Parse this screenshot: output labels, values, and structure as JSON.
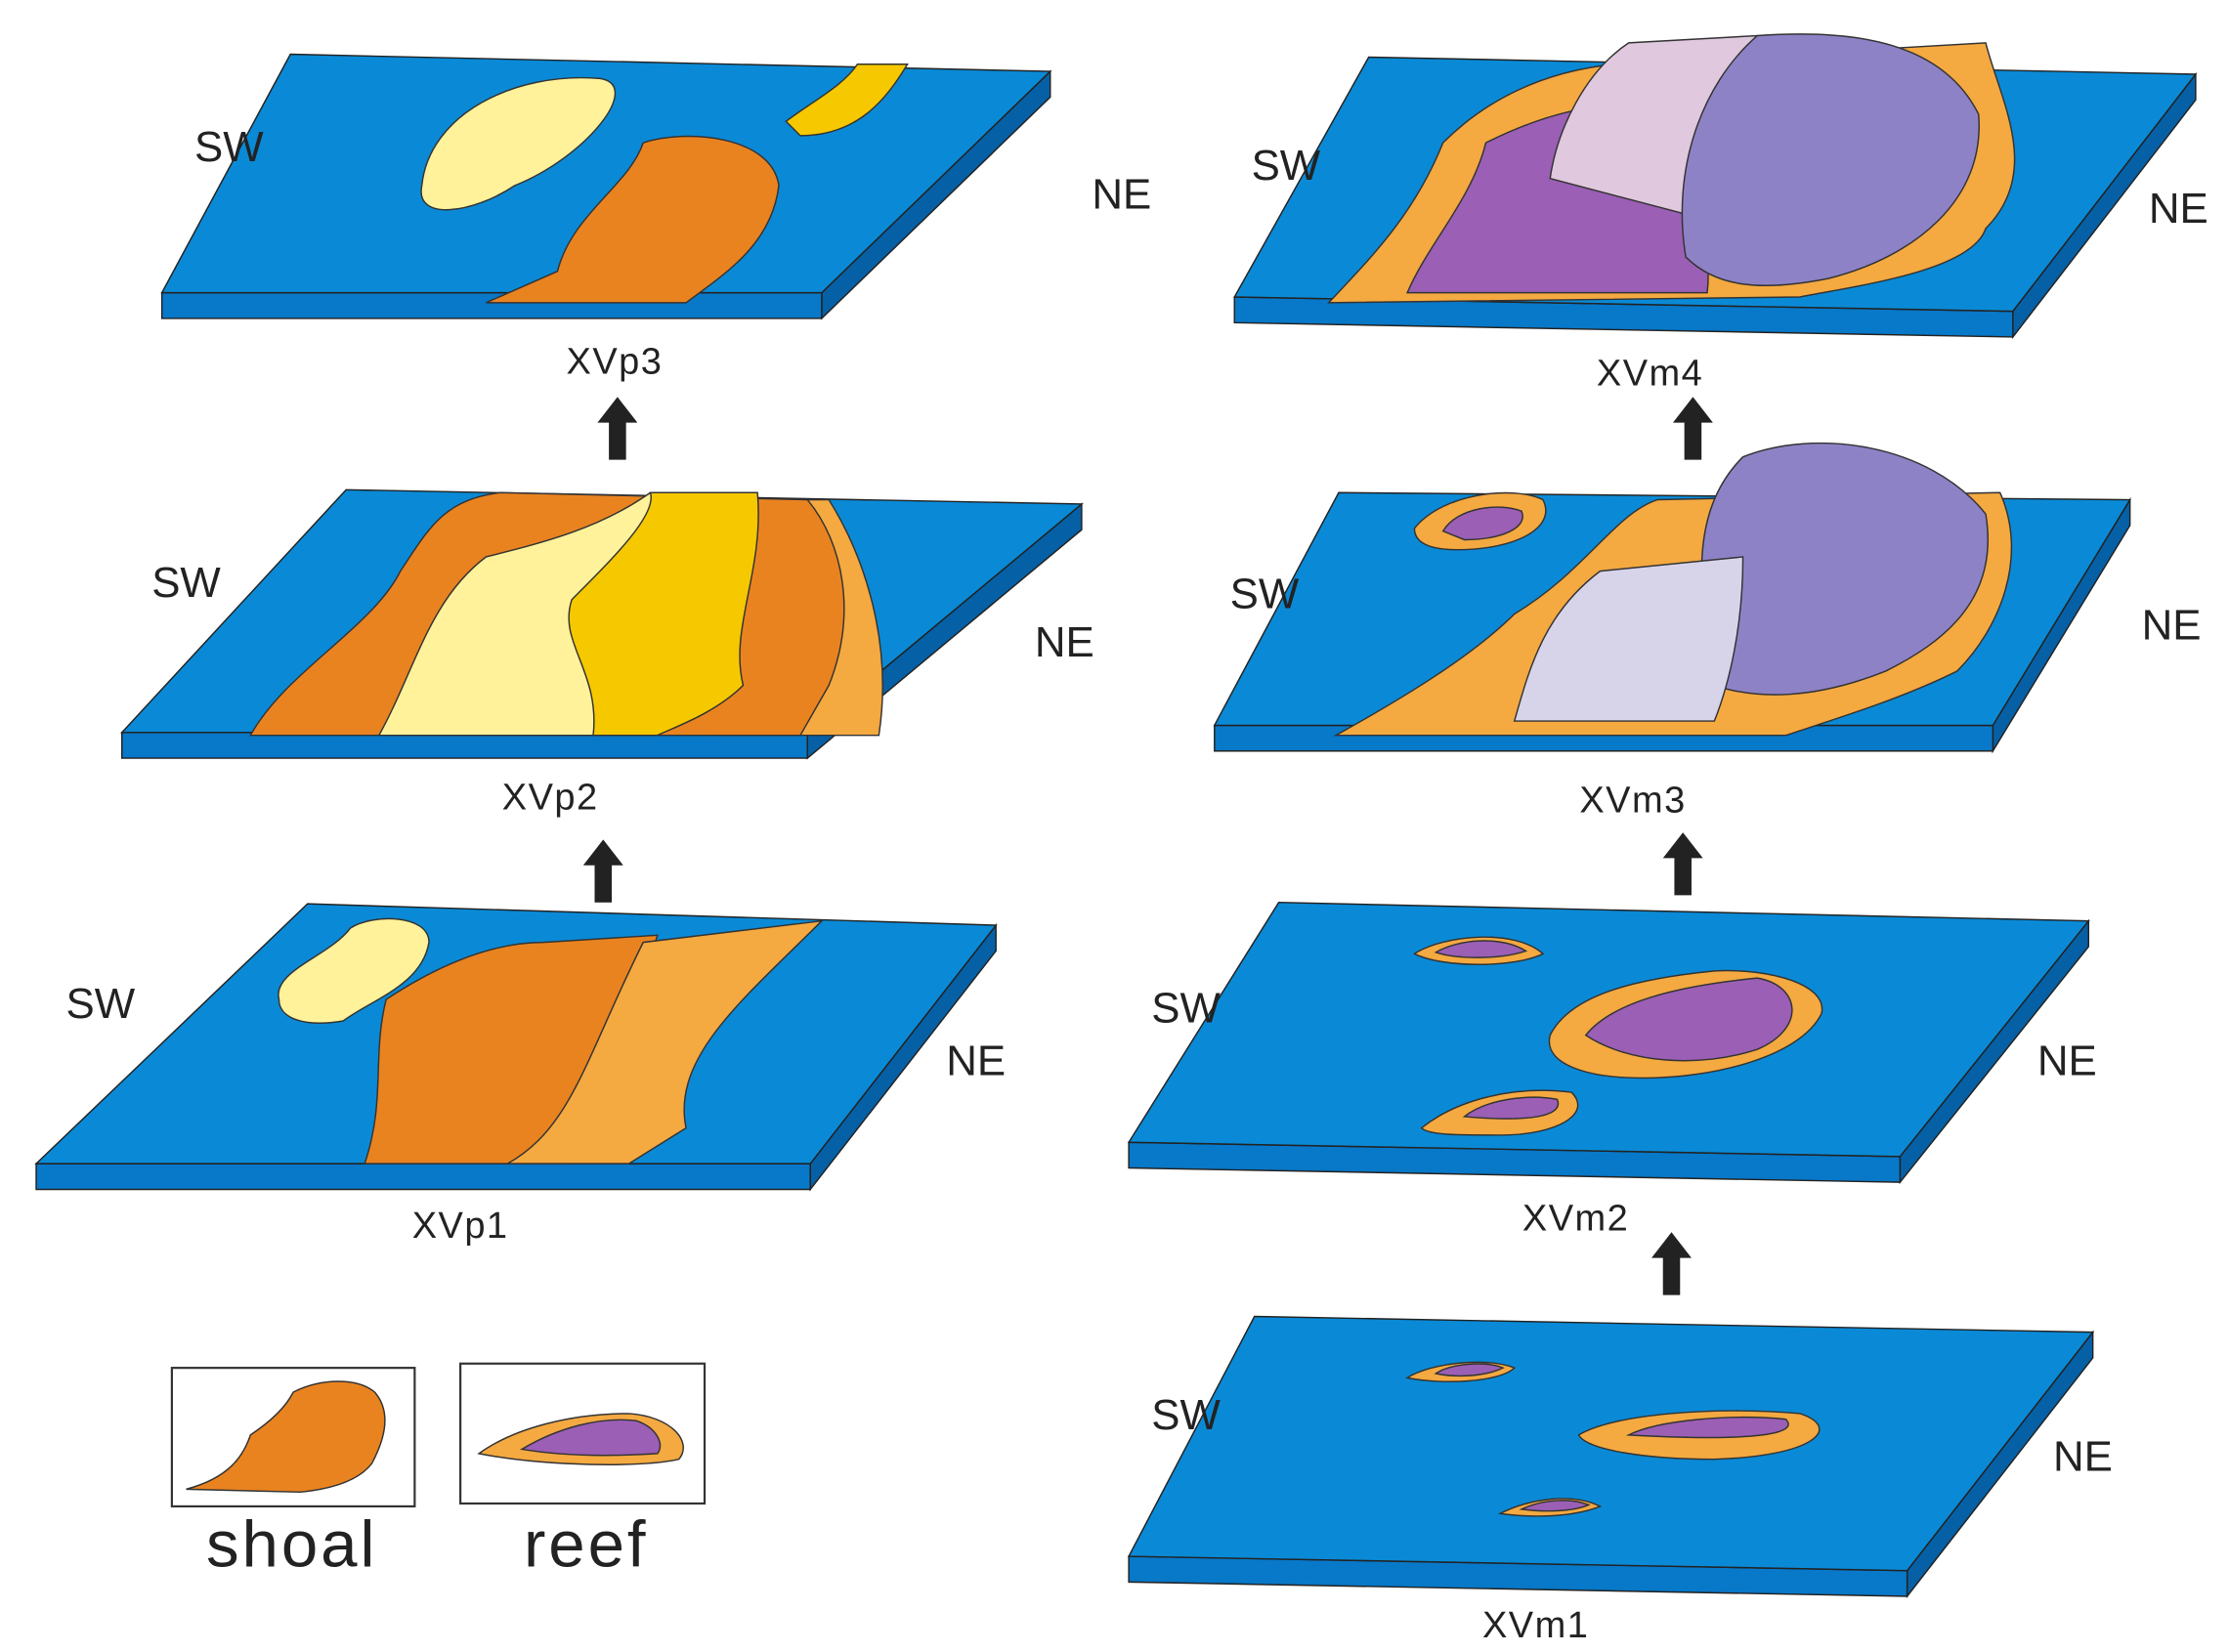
{
  "panels": [
    {
      "label": "XVp3",
      "sw": "SW",
      "ne": "NE"
    },
    {
      "label": "XVp2",
      "sw": "SW",
      "ne": "NE"
    },
    {
      "label": "XVp1",
      "sw": "SW",
      "ne": "NE"
    },
    {
      "label": "XVm4",
      "sw": "SW",
      "ne": "NE"
    },
    {
      "label": "XVm3",
      "sw": "SW",
      "ne": "NE"
    },
    {
      "label": "XVm2",
      "sw": "SW",
      "ne": "NE"
    },
    {
      "label": "XVm1",
      "sw": "SW",
      "ne": "NE"
    }
  ],
  "legend": [
    {
      "label": "shoal"
    },
    {
      "label": "reef"
    }
  ]
}
